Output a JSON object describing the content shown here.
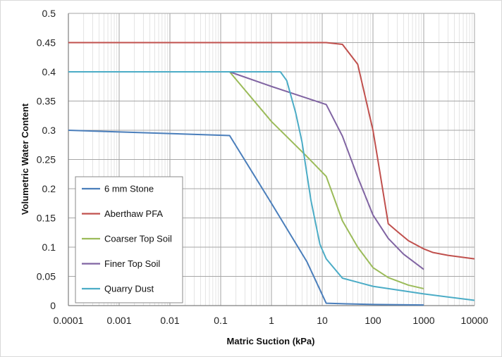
{
  "chart_data": {
    "type": "line",
    "title": "",
    "xlabel": "Matric Suction (kPa)",
    "ylabel": "Volumetric Water Content",
    "x_scale": "log",
    "xlim": [
      0.0001,
      10000
    ],
    "ylim": [
      0,
      0.5
    ],
    "grid": true,
    "legend_position": "bottom-left",
    "x_ticks": [
      "0.0001",
      "0.001",
      "0.01",
      "0.1",
      "1",
      "10",
      "100",
      "1000",
      "10000"
    ],
    "y_ticks": [
      "0",
      "0.05",
      "0.1",
      "0.15",
      "0.2",
      "0.25",
      "0.3",
      "0.35",
      "0.4",
      "0.45",
      "0.5"
    ],
    "series": [
      {
        "name": "6 mm Stone",
        "color": "#4a7ebb",
        "points": [
          [
            0.0001,
            0.3
          ],
          [
            0.15,
            0.291
          ],
          [
            1,
            0.175
          ],
          [
            5,
            0.075
          ],
          [
            12,
            0.004
          ],
          [
            30,
            0.003
          ],
          [
            100,
            0.002
          ],
          [
            1000,
            0.001
          ]
        ]
      },
      {
        "name": "Aberthaw PFA",
        "color": "#c0504d",
        "points": [
          [
            0.0001,
            0.45
          ],
          [
            12,
            0.45
          ],
          [
            25,
            0.447
          ],
          [
            50,
            0.413
          ],
          [
            100,
            0.3
          ],
          [
            130,
            0.24
          ],
          [
            200,
            0.14
          ],
          [
            300,
            0.127
          ],
          [
            500,
            0.111
          ],
          [
            1000,
            0.097
          ],
          [
            1500,
            0.091
          ],
          [
            3000,
            0.086
          ],
          [
            10000,
            0.08
          ]
        ]
      },
      {
        "name": "Coarser Top Soil",
        "color": "#9bbb59",
        "points": [
          [
            0.0001,
            0.4
          ],
          [
            0.15,
            0.4
          ],
          [
            1,
            0.315
          ],
          [
            5,
            0.255
          ],
          [
            12,
            0.221
          ],
          [
            25,
            0.145
          ],
          [
            50,
            0.1
          ],
          [
            100,
            0.065
          ],
          [
            200,
            0.048
          ],
          [
            500,
            0.035
          ],
          [
            1000,
            0.029
          ]
        ]
      },
      {
        "name": "Finer Top Soil",
        "color": "#8064a2",
        "points": [
          [
            0.0001,
            0.4
          ],
          [
            0.15,
            0.4
          ],
          [
            1,
            0.375
          ],
          [
            12,
            0.344
          ],
          [
            25,
            0.29
          ],
          [
            50,
            0.22
          ],
          [
            100,
            0.155
          ],
          [
            200,
            0.115
          ],
          [
            400,
            0.088
          ],
          [
            1000,
            0.062
          ]
        ]
      },
      {
        "name": "Quarry Dust",
        "color": "#4bacc6",
        "points": [
          [
            0.0001,
            0.4
          ],
          [
            1.5,
            0.4
          ],
          [
            2,
            0.385
          ],
          [
            3,
            0.33
          ],
          [
            4,
            0.28
          ],
          [
            6,
            0.18
          ],
          [
            9,
            0.105
          ],
          [
            12,
            0.08
          ],
          [
            25,
            0.047
          ],
          [
            100,
            0.033
          ],
          [
            1000,
            0.02
          ],
          [
            10000,
            0.009
          ]
        ]
      }
    ]
  }
}
